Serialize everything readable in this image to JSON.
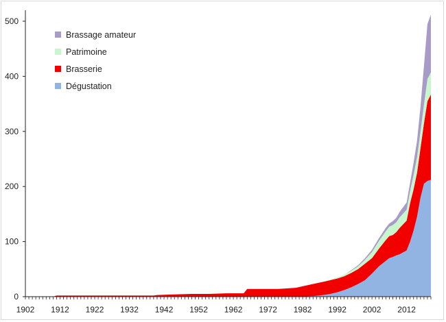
{
  "chart_data": {
    "type": "area",
    "stacked": true,
    "title": "",
    "xlabel": "",
    "ylabel": "",
    "xlim": [
      1902,
      2019
    ],
    "ylim": [
      0,
      500
    ],
    "x_tick_labels": [
      "1902",
      "1912",
      "1922",
      "1932",
      "1942",
      "1952",
      "1962",
      "1972",
      "1982",
      "1992",
      "2002",
      "2012"
    ],
    "y_tick_labels": [
      "0",
      "100",
      "200",
      "300",
      "400",
      "500"
    ],
    "grid": false,
    "legend_position": "top-left",
    "x": [
      1902,
      1910,
      1911,
      1920,
      1930,
      1939,
      1940,
      1945,
      1950,
      1955,
      1960,
      1965,
      1966,
      1970,
      1975,
      1980,
      1985,
      1988,
      1990,
      1992,
      1994,
      1996,
      1998,
      2000,
      2002,
      2004,
      2006,
      2007,
      2008,
      2009,
      2010,
      2012,
      2013,
      2014,
      2015,
      2016,
      2017,
      2018,
      2019
    ],
    "series": [
      {
        "name": "Dégustation",
        "color": "#92B4E2",
        "values": [
          0,
          0,
          0,
          0,
          0,
          0,
          0,
          0,
          0,
          0,
          0,
          0,
          0,
          0,
          0,
          0,
          1,
          3,
          5,
          8,
          12,
          17,
          23,
          30,
          42,
          55,
          65,
          70,
          72,
          75,
          77,
          84,
          100,
          120,
          145,
          180,
          205,
          210,
          212
        ]
      },
      {
        "name": "Brasserie",
        "color": "#F20000",
        "values": [
          0,
          0,
          2,
          2,
          2,
          2,
          3,
          4,
          5,
          5,
          6,
          6,
          14,
          14,
          14,
          16,
          22,
          24,
          25,
          25,
          25,
          26,
          27,
          30,
          28,
          32,
          38,
          40,
          40,
          42,
          48,
          54,
          70,
          75,
          80,
          90,
          110,
          145,
          155
        ]
      },
      {
        "name": "Patrimoine",
        "color": "#C9F7CD",
        "values": [
          0,
          0,
          0,
          0,
          0,
          0,
          0,
          0,
          0,
          0,
          0,
          0,
          0,
          0,
          0,
          0,
          0,
          0,
          1,
          2,
          3,
          4,
          5,
          7,
          11,
          14,
          16,
          17,
          18,
          18,
          19,
          20,
          22,
          26,
          28,
          30,
          34,
          40,
          40
        ]
      },
      {
        "name": "Brassage amateur",
        "color": "#A99BC7",
        "values": [
          0,
          0,
          0,
          0,
          0,
          0,
          0,
          0,
          0,
          0,
          0,
          0,
          0,
          0,
          0,
          0,
          0,
          0,
          0,
          0,
          0,
          1,
          2,
          3,
          4,
          5,
          6,
          6,
          7,
          8,
          10,
          13,
          15,
          22,
          30,
          45,
          70,
          100,
          105
        ]
      }
    ]
  }
}
